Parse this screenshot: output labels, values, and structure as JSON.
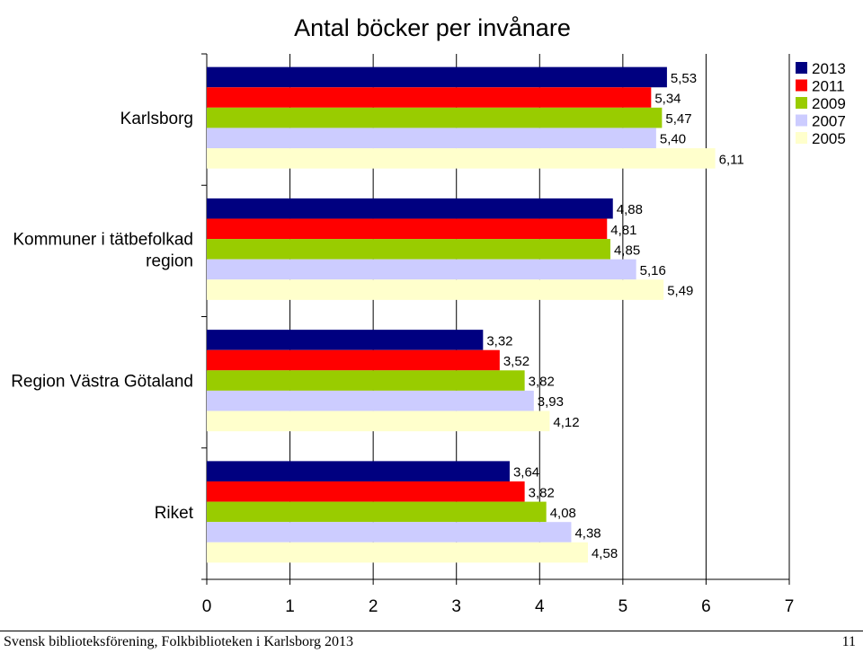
{
  "chart_data": {
    "type": "bar",
    "orientation": "horizontal",
    "title": "Antal böcker per invånare",
    "xlabel": "",
    "ylabel": "",
    "xlim": [
      0,
      7
    ],
    "x_ticks": [
      "0",
      "1",
      "2",
      "3",
      "4",
      "5",
      "6",
      "7"
    ],
    "grid": true,
    "legend_position": "top-right",
    "categories": [
      "Karlsborg",
      "Kommuner i tätbefolkad region",
      "Region Västra Götaland",
      "Riket"
    ],
    "series": [
      {
        "name": "2013",
        "color": "#000080",
        "values": [
          5.53,
          4.88,
          3.32,
          3.64
        ],
        "labels": [
          "5,53",
          "4,88",
          "3,32",
          "3,64"
        ]
      },
      {
        "name": "2011",
        "color": "#ff0000",
        "values": [
          5.34,
          4.81,
          3.52,
          3.82
        ],
        "labels": [
          "5,34",
          "4,81",
          "3,52",
          "3,82"
        ]
      },
      {
        "name": "2009",
        "color": "#99cc00",
        "values": [
          5.47,
          4.85,
          3.82,
          4.08
        ],
        "labels": [
          "5,47",
          "4,85",
          "3,82",
          "4,08"
        ]
      },
      {
        "name": "2007",
        "color": "#ccccff",
        "values": [
          5.4,
          5.16,
          3.93,
          4.38
        ],
        "labels": [
          "5,40",
          "5,16",
          "3,93",
          "4,38"
        ]
      },
      {
        "name": "2005",
        "color": "#ffffcc",
        "values": [
          6.11,
          5.49,
          4.12,
          4.58
        ],
        "labels": [
          "6,11",
          "5,49",
          "4,12",
          "4,58"
        ]
      }
    ]
  },
  "footer": {
    "left": "Svensk biblioteksförening, Folkbiblioteken i Karlsborg 2013",
    "right": "11"
  }
}
